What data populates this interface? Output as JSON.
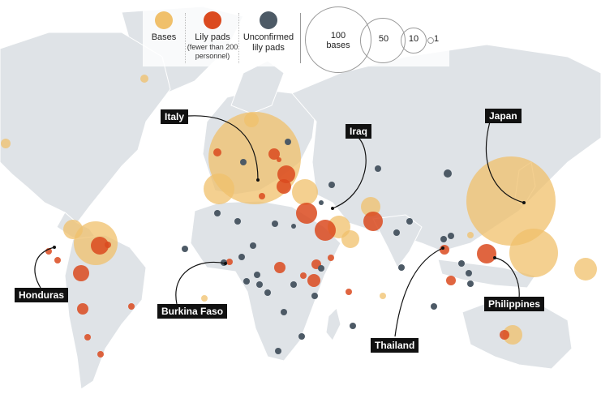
{
  "legend": {
    "bases": "Bases",
    "lily_pads": "Lily pads",
    "lily_pads_note": "(fewer than 200 personnel)",
    "unconfirmed": "Unconfirmed lily pads",
    "size_labels": [
      "100 bases",
      "50",
      "10",
      "1"
    ],
    "colors": {
      "bases": "#f0c06b",
      "lily": "#db4a1f",
      "unconfirmed": "#4d5a66"
    }
  },
  "callouts": [
    {
      "label": "Italy"
    },
    {
      "label": "Iraq"
    },
    {
      "label": "Japan"
    },
    {
      "label": "Honduras"
    },
    {
      "label": "Burkina Faso"
    },
    {
      "label": "Thailand"
    },
    {
      "label": "Philippines"
    }
  ],
  "markers_key": [
    "base",
    "lily-pad",
    "unconfirmed-lily-pad"
  ]
}
